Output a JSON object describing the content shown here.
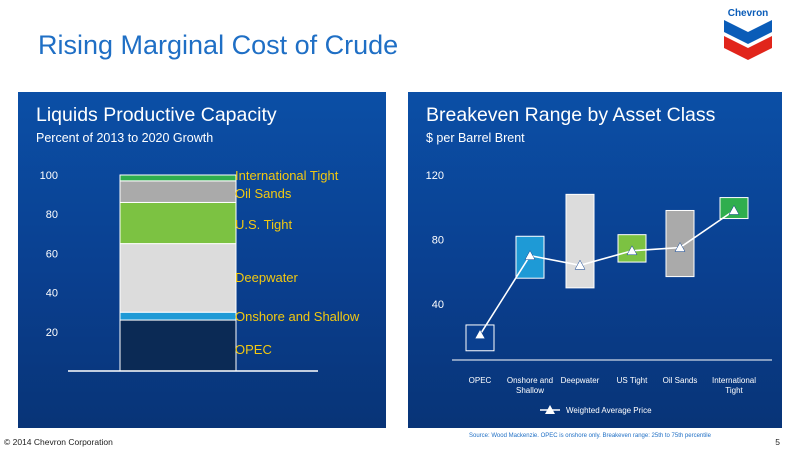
{
  "slide": {
    "title": "Rising Marginal Cost of Crude",
    "footer_left": "© 2014 Chevron Corporation",
    "page_number": "5",
    "source": "Source: Wood Mackenzie. OPEC is onshore only. Breakeven range: 25th to 75th percentile"
  },
  "logo": {
    "text": "Chevron",
    "colors": {
      "red": "#e1251b",
      "blue": "#0a5cb8"
    }
  },
  "colors": {
    "title_blue": "#1f6fc5",
    "panel_blue": "#0a3f8f",
    "label_yellow": "#f2c811",
    "green": "#7cc242",
    "gray": "#aaaaaa",
    "light_gray": "#dcdcdc",
    "cyan": "#1e9ad6",
    "navy": "#0b2a55"
  },
  "chart_data": [
    {
      "type": "bar",
      "title": "Liquids Productive Capacity",
      "subtitle": "Percent of 2013 to 2020 Growth",
      "ylim": [
        0,
        100
      ],
      "yticks": [
        20,
        40,
        60,
        80,
        100
      ],
      "stacked": true,
      "series": [
        {
          "name": "OPEC",
          "value": 26,
          "color": "#0b2a55"
        },
        {
          "name": "Onshore and Shallow",
          "value": 4,
          "color": "#1e9ad6"
        },
        {
          "name": "Deepwater",
          "value": 35,
          "color": "#dcdcdc"
        },
        {
          "name": "U.S. Tight",
          "value": 21,
          "color": "#7cc242"
        },
        {
          "name": "Oil Sands",
          "value": 11,
          "color": "#aaaaaa"
        },
        {
          "name": "International Tight",
          "value": 3,
          "color": "#2fae4e"
        }
      ]
    },
    {
      "type": "bar",
      "title": "Breakeven Range by Asset Class",
      "subtitle": "$ per Barrel Brent",
      "ylim": [
        0,
        120
      ],
      "yticks": [
        40,
        80,
        120
      ],
      "categories": [
        "OPEC",
        "Onshore and Shallow",
        "Deepwater",
        "US Tight",
        "Oil Sands",
        "International Tight"
      ],
      "ranges": [
        {
          "low": 11,
          "high": 27,
          "fill": "#0a3f8f"
        },
        {
          "low": 56,
          "high": 82,
          "fill": "#1e9ad6"
        },
        {
          "low": 50,
          "high": 108,
          "fill": "#dcdcdc"
        },
        {
          "low": 66,
          "high": 83,
          "fill": "#7cc242"
        },
        {
          "low": 57,
          "high": 98,
          "fill": "#aaaaaa"
        },
        {
          "low": 93,
          "high": 106,
          "fill": "#2fae4e"
        }
      ],
      "series": [
        {
          "name": "Weighted Average Price",
          "values": [
            21,
            70,
            64,
            73,
            75,
            98
          ]
        }
      ]
    }
  ]
}
